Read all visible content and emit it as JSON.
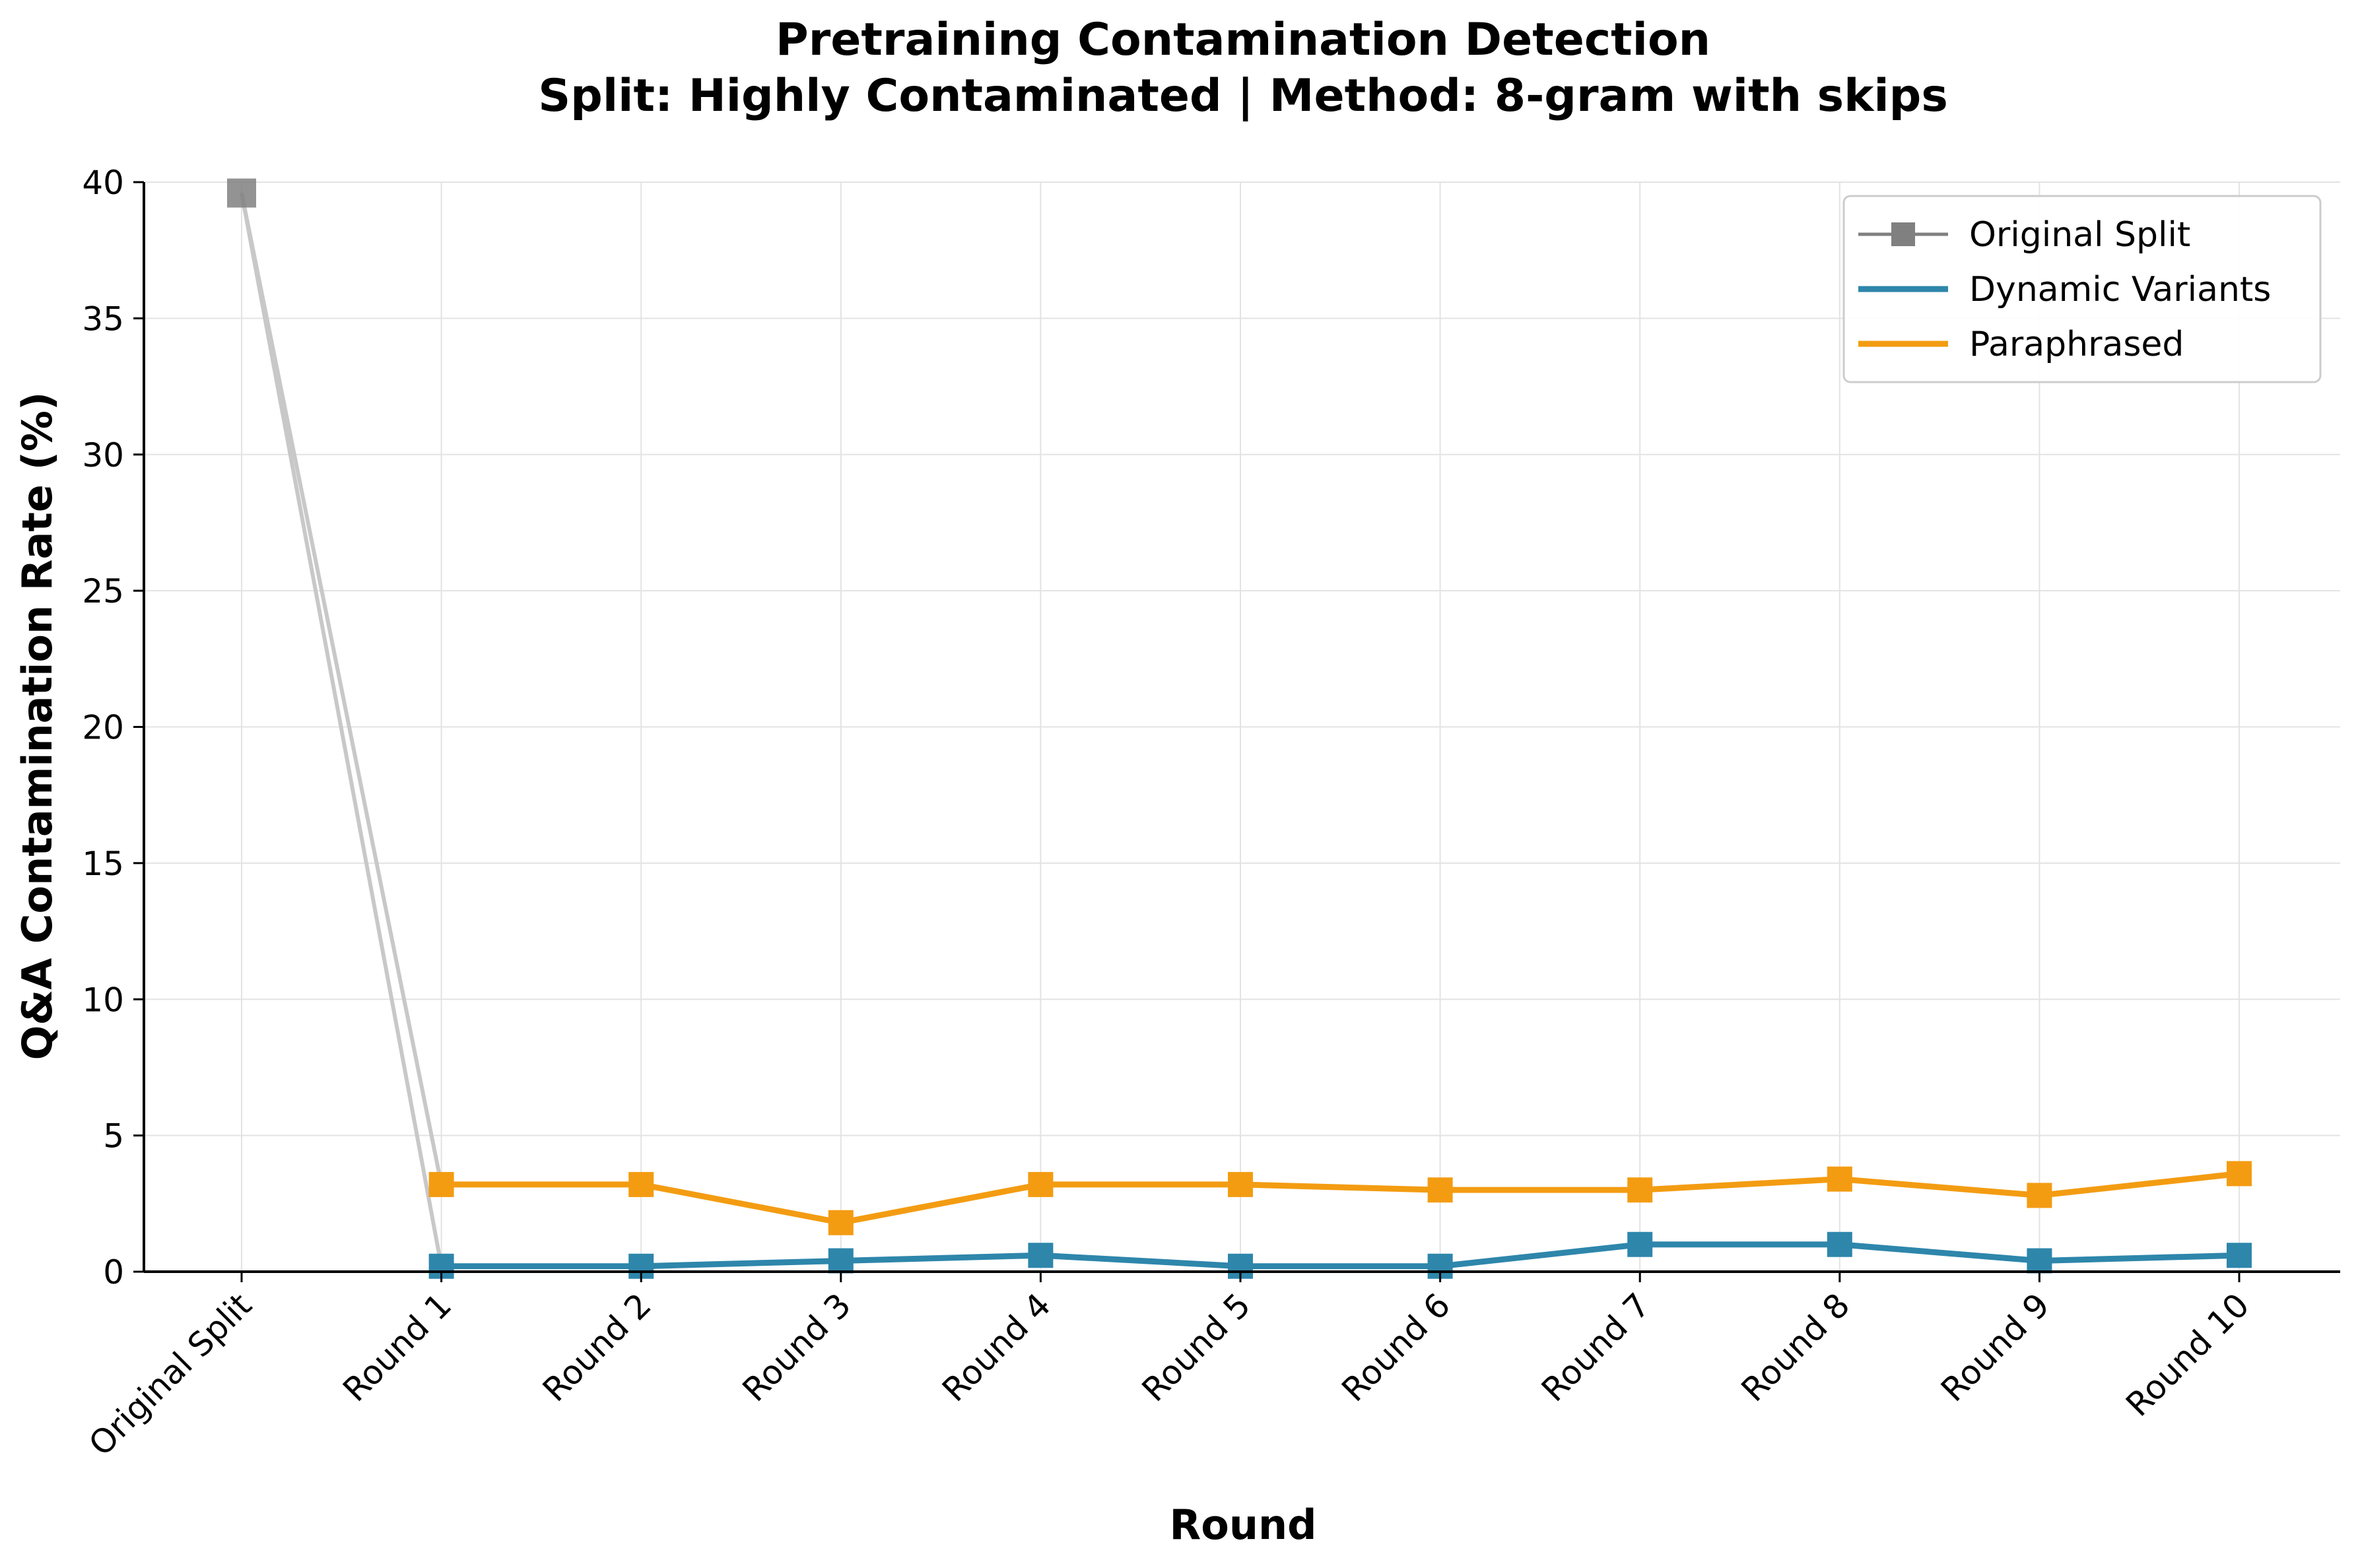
{
  "chart_data": {
    "type": "line",
    "title": "Pretraining Contamination Detection",
    "subtitle": "Split: Highly Contaminated | Method: 8-gram with skips",
    "xlabel": "Round",
    "ylabel": "Q&A Contamination Rate (%)",
    "categories": [
      "Original Split",
      "Round 1",
      "Round 2",
      "Round 3",
      "Round 4",
      "Round 5",
      "Round 6",
      "Round 7",
      "Round 8",
      "Round 9",
      "Round 10"
    ],
    "ylim": [
      0,
      40
    ],
    "yticks": [
      0,
      5,
      10,
      15,
      20,
      25,
      30,
      35,
      40
    ],
    "grid": true,
    "legend_position": "top-right",
    "series": [
      {
        "name": "Original Split",
        "color": "#808080",
        "points": [
          {
            "x": "Original Split",
            "y": 39.6
          }
        ]
      },
      {
        "name": "Dynamic Variants",
        "color": "#2e86ab",
        "values": [
          null,
          0.2,
          0.2,
          0.4,
          0.6,
          0.2,
          0.2,
          1.0,
          1.0,
          0.4,
          0.6
        ]
      },
      {
        "name": "Paraphrased",
        "color": "#f39c12",
        "values": [
          null,
          3.2,
          3.2,
          1.8,
          3.2,
          3.2,
          3.0,
          3.0,
          3.4,
          2.8,
          3.6
        ]
      }
    ],
    "connector_color": "#c8c8c8"
  }
}
